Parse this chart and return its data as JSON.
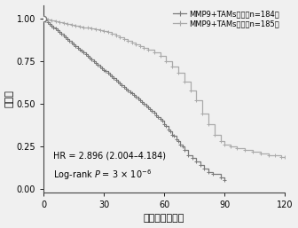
{
  "xlabel": "总生存率（月）",
  "ylabel": "生存率",
  "xlim": [
    0,
    120
  ],
  "ylim": [
    -0.02,
    1.08
  ],
  "xticks": [
    0,
    30,
    60,
    90,
    120
  ],
  "yticks": [
    0.0,
    0.25,
    0.5,
    0.75,
    1.0
  ],
  "legend_high": "MMP9+TAMs高组（n=184）",
  "legend_low": "MMP9+TAMs低组（n=185）",
  "annotation_line1": "HR = 2.896 (2.004–4.184)",
  "annotation_line2": "Log-rank $P$ = 3 × 10$^{-6}$",
  "color_high": "#7a7a7a",
  "color_low": "#aaaaaa",
  "background_color": "#f0f0f0",
  "high_group_times": [
    0,
    1,
    2,
    3,
    4,
    5,
    6,
    7,
    8,
    9,
    10,
    11,
    12,
    13,
    14,
    15,
    16,
    17,
    18,
    19,
    20,
    21,
    22,
    23,
    24,
    25,
    26,
    27,
    28,
    29,
    30,
    31,
    32,
    33,
    34,
    35,
    36,
    37,
    38,
    39,
    40,
    41,
    42,
    43,
    44,
    45,
    46,
    47,
    48,
    49,
    50,
    51,
    52,
    53,
    54,
    55,
    56,
    57,
    58,
    59,
    60,
    61,
    62,
    63,
    64,
    65,
    66,
    67,
    68,
    69,
    70,
    72,
    74,
    76,
    78,
    80,
    82,
    84,
    88,
    90
  ],
  "high_group_surv": [
    1.0,
    0.99,
    0.98,
    0.97,
    0.96,
    0.95,
    0.94,
    0.93,
    0.92,
    0.91,
    0.9,
    0.89,
    0.88,
    0.87,
    0.86,
    0.85,
    0.84,
    0.83,
    0.82,
    0.81,
    0.8,
    0.79,
    0.78,
    0.77,
    0.76,
    0.75,
    0.74,
    0.73,
    0.72,
    0.71,
    0.7,
    0.69,
    0.68,
    0.67,
    0.66,
    0.65,
    0.64,
    0.63,
    0.62,
    0.61,
    0.6,
    0.59,
    0.58,
    0.57,
    0.56,
    0.55,
    0.54,
    0.53,
    0.52,
    0.51,
    0.5,
    0.49,
    0.48,
    0.47,
    0.46,
    0.45,
    0.43,
    0.42,
    0.41,
    0.4,
    0.38,
    0.37,
    0.35,
    0.34,
    0.32,
    0.31,
    0.29,
    0.28,
    0.26,
    0.25,
    0.23,
    0.2,
    0.18,
    0.16,
    0.14,
    0.12,
    0.1,
    0.09,
    0.07,
    0.05
  ],
  "low_group_times": [
    0,
    2,
    4,
    6,
    8,
    10,
    12,
    14,
    16,
    18,
    20,
    22,
    24,
    26,
    28,
    30,
    32,
    34,
    36,
    38,
    40,
    42,
    44,
    46,
    48,
    50,
    52,
    55,
    58,
    61,
    64,
    67,
    70,
    73,
    76,
    79,
    82,
    85,
    88,
    90,
    93,
    96,
    100,
    104,
    108,
    112,
    115,
    118,
    120
  ],
  "low_group_surv": [
    1.0,
    0.995,
    0.99,
    0.985,
    0.98,
    0.975,
    0.97,
    0.965,
    0.96,
    0.955,
    0.95,
    0.945,
    0.94,
    0.935,
    0.93,
    0.925,
    0.92,
    0.91,
    0.9,
    0.89,
    0.88,
    0.87,
    0.86,
    0.85,
    0.84,
    0.83,
    0.82,
    0.8,
    0.78,
    0.75,
    0.72,
    0.68,
    0.63,
    0.58,
    0.52,
    0.44,
    0.38,
    0.32,
    0.28,
    0.26,
    0.25,
    0.24,
    0.23,
    0.22,
    0.21,
    0.2,
    0.2,
    0.19,
    0.19
  ]
}
